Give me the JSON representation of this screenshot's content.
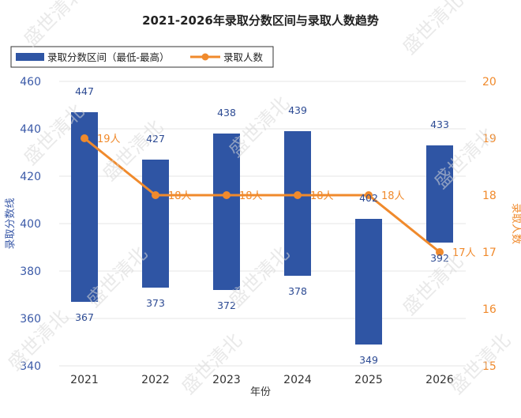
{
  "chart_data": {
    "type": "bar",
    "title": "2021-2026年录取分数区间与录取人数趋势",
    "categories": [
      "2021",
      "2022",
      "2023",
      "2024",
      "2025",
      "2026"
    ],
    "xlabel": "年份",
    "ylabel": "录取分数线",
    "y2label": "录取人数",
    "ylim": [
      340,
      460
    ],
    "yticks": [
      340,
      360,
      380,
      400,
      420,
      440,
      460
    ],
    "y2lim": [
      15,
      20
    ],
    "y2ticks": [
      15,
      16,
      17,
      18,
      19,
      20
    ],
    "series": [
      {
        "name": "录取分数区间（最低-最高）",
        "type": "floating-bar",
        "axis": "left",
        "low": [
          367,
          373,
          372,
          378,
          349,
          392
        ],
        "high": [
          447,
          427,
          438,
          439,
          402,
          433
        ],
        "color": "#2f55a4"
      },
      {
        "name": "录取人数",
        "type": "line",
        "axis": "right",
        "values": [
          19,
          18,
          18,
          18,
          18,
          17
        ],
        "labels": [
          "19人",
          "18人",
          "18人",
          "18人",
          "18人",
          "17人"
        ],
        "color": "#f08a2c"
      }
    ],
    "legend": "top-left",
    "grid": true
  },
  "watermark": "盛世清北"
}
